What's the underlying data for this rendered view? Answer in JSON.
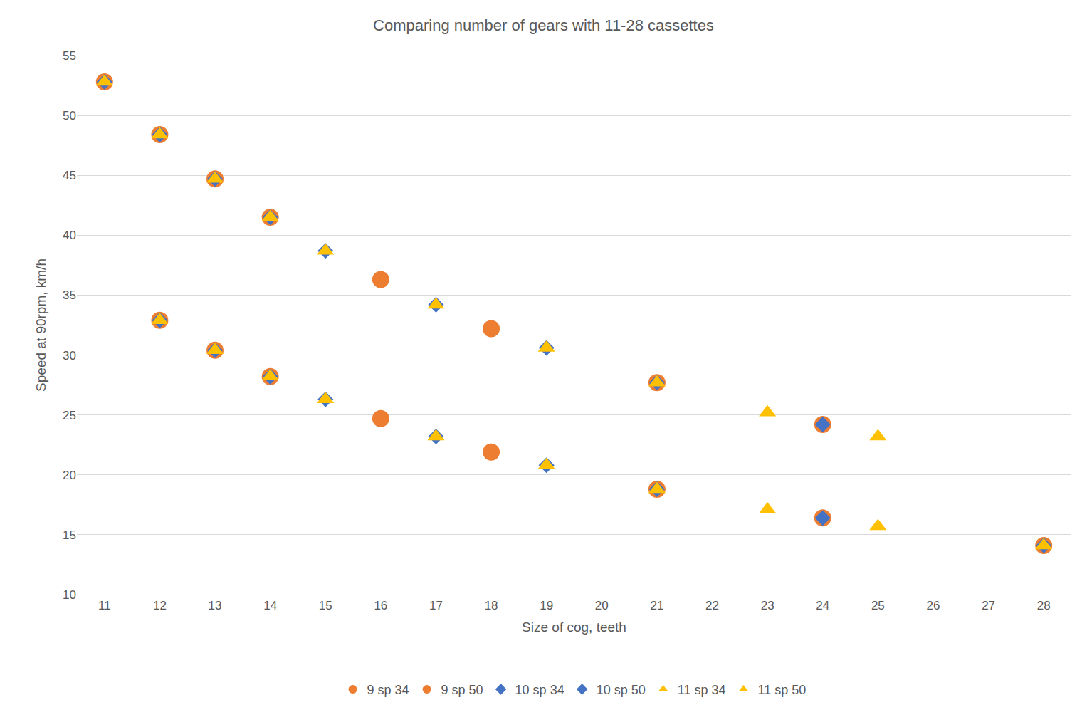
{
  "chart_data": {
    "type": "scatter",
    "title": "Comparing number of gears with 11-28 cassettes",
    "x_label": "Size of cog, teeth",
    "y_label": "Speed at 90rpm, km/h",
    "xlim": [
      10.5,
      28.5
    ],
    "xticks": [
      11,
      12,
      13,
      14,
      15,
      16,
      17,
      18,
      19,
      20,
      21,
      22,
      23,
      24,
      25,
      26,
      27,
      28
    ],
    "ylim": [
      10,
      55
    ],
    "yticks": [
      10,
      15,
      20,
      25,
      30,
      35,
      40,
      45,
      50,
      55
    ],
    "grid": true,
    "legend": "bottom",
    "series": [
      {
        "name": "9 sp 34",
        "color": "#ED7D31",
        "marker": "circle",
        "x": [
          12,
          13,
          14,
          16,
          18,
          21,
          24,
          28
        ],
        "values": [
          32.9,
          30.4,
          28.2,
          24.7,
          21.9,
          18.8,
          16.4,
          14.1
        ]
      },
      {
        "name": "9 sp 50",
        "color": "#ED7D31",
        "marker": "circle",
        "x": [
          11,
          12,
          13,
          14,
          16,
          18,
          21,
          24
        ],
        "values": [
          52.8,
          48.4,
          44.7,
          41.5,
          36.3,
          32.2,
          27.7,
          24.2
        ]
      },
      {
        "name": "10 sp 34",
        "color": "#4472C4",
        "marker": "diamond",
        "x": [
          12,
          13,
          14,
          15,
          17,
          19,
          21,
          24,
          28
        ],
        "values": [
          32.9,
          30.4,
          28.2,
          26.3,
          23.2,
          20.8,
          18.8,
          16.4,
          14.1
        ]
      },
      {
        "name": "10 sp 50",
        "color": "#4472C4",
        "marker": "diamond",
        "x": [
          11,
          12,
          13,
          14,
          15,
          17,
          19,
          21,
          24
        ],
        "values": [
          52.8,
          48.4,
          44.7,
          41.5,
          38.7,
          34.2,
          30.6,
          27.7,
          24.2
        ]
      },
      {
        "name": "11 sp 34",
        "color": "#FFC000",
        "marker": "triangle-up",
        "x": [
          12,
          13,
          14,
          15,
          17,
          19,
          21,
          23,
          25,
          28
        ],
        "values": [
          32.9,
          30.4,
          28.2,
          26.3,
          23.2,
          20.8,
          18.8,
          17.1,
          15.7,
          14.1
        ]
      },
      {
        "name": "11 sp 50",
        "color": "#FFC000",
        "marker": "triangle-up",
        "x": [
          11,
          12,
          13,
          14,
          15,
          17,
          19,
          21,
          23,
          25
        ],
        "values": [
          52.8,
          48.4,
          44.7,
          41.5,
          38.7,
          34.2,
          30.6,
          27.7,
          25.2,
          23.2
        ]
      }
    ]
  }
}
